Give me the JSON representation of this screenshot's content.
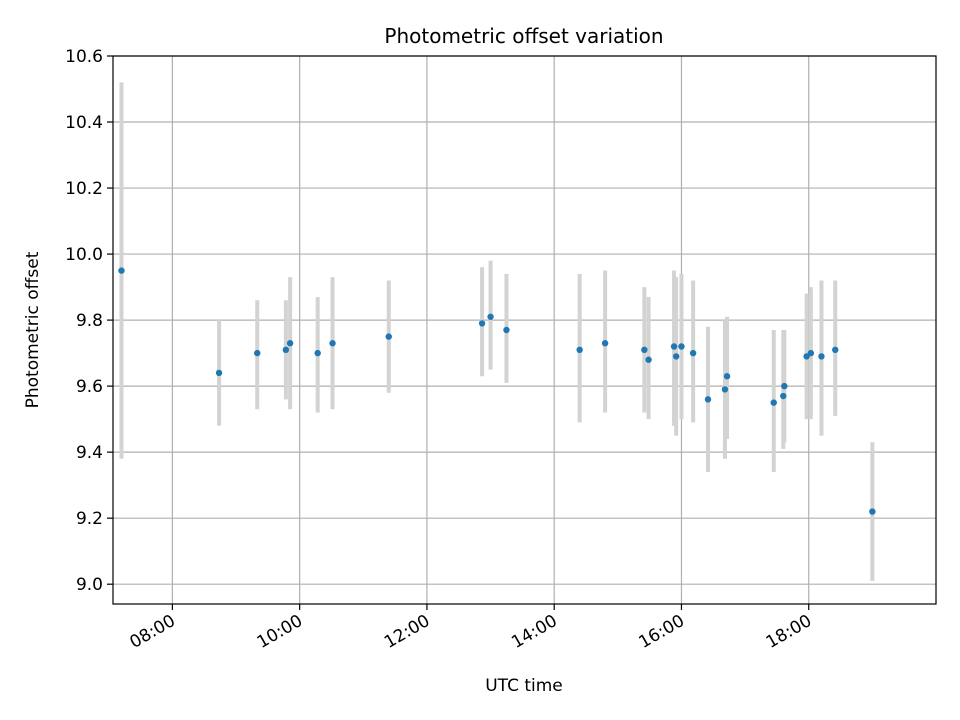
{
  "chart_data": {
    "type": "scatter",
    "title": "Photometric offset variation",
    "xlabel": "UTC time",
    "ylabel": "Photometric offset",
    "ylim": [
      8.94,
      10.6
    ],
    "xlim": [
      "07:04",
      "20:00"
    ],
    "x_ticks": [
      "08:00",
      "10:00",
      "12:00",
      "14:00",
      "16:00",
      "18:00"
    ],
    "y_ticks": [
      "9.0",
      "9.2",
      "9.4",
      "9.6",
      "9.8",
      "10.0",
      "10.2",
      "10.4",
      "10.6"
    ],
    "grid": true,
    "marker_color": "#1f77b4",
    "errorbar_color": "#d3d3d3",
    "points": [
      {
        "x": "07:12",
        "y": 9.95,
        "lo": 9.38,
        "hi": 10.52
      },
      {
        "x": "08:44",
        "y": 9.64,
        "lo": 9.48,
        "hi": 9.8
      },
      {
        "x": "09:20",
        "y": 9.7,
        "lo": 9.53,
        "hi": 9.86
      },
      {
        "x": "09:47",
        "y": 9.71,
        "lo": 9.56,
        "hi": 9.86
      },
      {
        "x": "09:51",
        "y": 9.73,
        "lo": 9.53,
        "hi": 9.93
      },
      {
        "x": "10:17",
        "y": 9.7,
        "lo": 9.52,
        "hi": 9.87
      },
      {
        "x": "10:31",
        "y": 9.73,
        "lo": 9.53,
        "hi": 9.93
      },
      {
        "x": "11:24",
        "y": 9.75,
        "lo": 9.58,
        "hi": 9.92
      },
      {
        "x": "12:52",
        "y": 9.79,
        "lo": 9.63,
        "hi": 9.96
      },
      {
        "x": "13:00",
        "y": 9.81,
        "lo": 9.65,
        "hi": 9.98
      },
      {
        "x": "13:15",
        "y": 9.77,
        "lo": 9.61,
        "hi": 9.94
      },
      {
        "x": "14:24",
        "y": 9.71,
        "lo": 9.49,
        "hi": 9.94
      },
      {
        "x": "14:48",
        "y": 9.73,
        "lo": 9.52,
        "hi": 9.95
      },
      {
        "x": "15:25",
        "y": 9.71,
        "lo": 9.52,
        "hi": 9.9
      },
      {
        "x": "15:29",
        "y": 9.68,
        "lo": 9.5,
        "hi": 9.87
      },
      {
        "x": "15:53",
        "y": 9.72,
        "lo": 9.48,
        "hi": 9.95
      },
      {
        "x": "15:55",
        "y": 9.69,
        "lo": 9.45,
        "hi": 9.93
      },
      {
        "x": "16:00",
        "y": 9.72,
        "lo": 9.5,
        "hi": 9.94
      },
      {
        "x": "16:11",
        "y": 9.7,
        "lo": 9.49,
        "hi": 9.92
      },
      {
        "x": "16:25",
        "y": 9.56,
        "lo": 9.34,
        "hi": 9.78
      },
      {
        "x": "16:41",
        "y": 9.59,
        "lo": 9.38,
        "hi": 9.8
      },
      {
        "x": "16:43",
        "y": 9.63,
        "lo": 9.44,
        "hi": 9.81
      },
      {
        "x": "17:27",
        "y": 9.55,
        "lo": 9.34,
        "hi": 9.77
      },
      {
        "x": "17:36",
        "y": 9.57,
        "lo": 9.41,
        "hi": 9.77
      },
      {
        "x": "17:37",
        "y": 9.6,
        "lo": 9.43,
        "hi": 9.77
      },
      {
        "x": "17:58",
        "y": 9.69,
        "lo": 9.5,
        "hi": 9.88
      },
      {
        "x": "18:02",
        "y": 9.7,
        "lo": 9.5,
        "hi": 9.9
      },
      {
        "x": "18:12",
        "y": 9.69,
        "lo": 9.45,
        "hi": 9.92
      },
      {
        "x": "18:25",
        "y": 9.71,
        "lo": 9.51,
        "hi": 9.92
      },
      {
        "x": "19:00",
        "y": 9.22,
        "lo": 9.01,
        "hi": 9.43
      }
    ]
  }
}
